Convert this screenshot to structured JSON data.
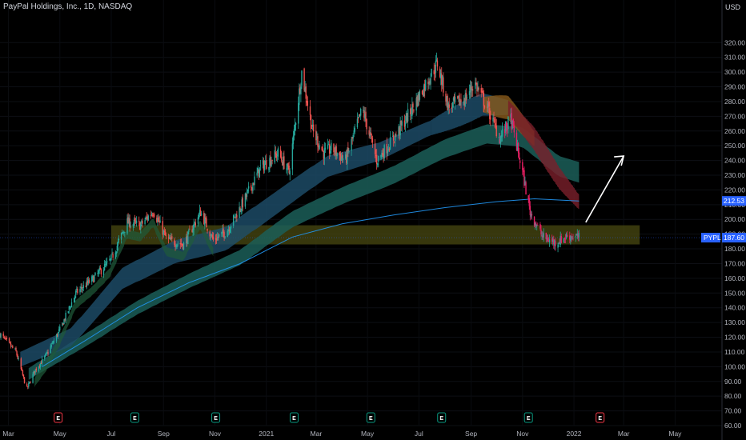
{
  "header": {
    "title": "PayPal Holdings, Inc., 1D, NASDAQ",
    "currency": "USD"
  },
  "price_axis": {
    "min": 60,
    "max": 340,
    "ticks": [
      "320.00",
      "310.00",
      "300.00",
      "290.00",
      "280.00",
      "270.00",
      "260.00",
      "250.00",
      "240.00",
      "230.00",
      "220.00",
      "210.00",
      "200.00",
      "190.00",
      "180.00",
      "170.00",
      "160.00",
      "150.00",
      "140.00",
      "130.00",
      "120.00",
      "110.00",
      "100.00",
      "90.00",
      "80.00",
      "70.00",
      "60.00"
    ]
  },
  "time_axis": {
    "labels": [
      {
        "text": "Mar",
        "date": "2020-03-01"
      },
      {
        "text": "May",
        "date": "2020-05-01"
      },
      {
        "text": "Jul",
        "date": "2020-07-01"
      },
      {
        "text": "Sep",
        "date": "2020-09-01"
      },
      {
        "text": "Nov",
        "date": "2020-11-01"
      },
      {
        "text": "2021",
        "date": "2021-01-01"
      },
      {
        "text": "Mar",
        "date": "2021-03-01"
      },
      {
        "text": "May",
        "date": "2021-05-01"
      },
      {
        "text": "Jul",
        "date": "2021-07-01"
      },
      {
        "text": "Sep",
        "date": "2021-09-01"
      },
      {
        "text": "Nov",
        "date": "2021-11-01"
      },
      {
        "text": "2022",
        "date": "2022-01-01"
      },
      {
        "text": "Mar",
        "date": "2022-03-01"
      },
      {
        "text": "May",
        "date": "2022-05-01"
      }
    ]
  },
  "price_tags": [
    {
      "label": "212.53",
      "value": 212.53,
      "color": "#2962ff"
    },
    {
      "label": "187.60",
      "value": 187.6,
      "color": "#2962ff"
    }
  ],
  "symbol_tag": {
    "label": "PYPL",
    "color": "#2962ff"
  },
  "events": [
    {
      "label": "E",
      "date": "2020-04-29",
      "color": "#f23645"
    },
    {
      "label": "E",
      "date": "2020-07-29",
      "color": "#089981"
    },
    {
      "label": "E",
      "date": "2020-11-02",
      "color": "#089981"
    },
    {
      "label": "E",
      "date": "2021-02-03",
      "color": "#089981"
    },
    {
      "label": "E",
      "date": "2021-05-05",
      "color": "#089981"
    },
    {
      "label": "E",
      "date": "2021-07-28",
      "color": "#089981"
    },
    {
      "label": "E",
      "date": "2021-11-08",
      "color": "#089981"
    },
    {
      "label": "E",
      "date": "2022-02-01",
      "color": "#f23645"
    }
  ],
  "colors": {
    "bull": "#26a69a",
    "bear": "#ef5350",
    "bear_strong": "#e91e63",
    "zone": "#4a4a12",
    "sma_200": "#2196f3",
    "arrow": "#ffffff",
    "grid": "#1e222d"
  },
  "chart_data": {
    "type": "candlestick",
    "symbol": "PYPL",
    "interval": "1D",
    "exchange": "NASDAQ",
    "price_path": [
      {
        "date": "2020-02-20",
        "price": 122
      },
      {
        "date": "2020-03-10",
        "price": 110
      },
      {
        "date": "2020-03-20",
        "price": 90
      },
      {
        "date": "2020-03-23",
        "price": 85
      },
      {
        "date": "2020-04-01",
        "price": 97
      },
      {
        "date": "2020-04-15",
        "price": 108
      },
      {
        "date": "2020-05-01",
        "price": 125
      },
      {
        "date": "2020-05-20",
        "price": 150
      },
      {
        "date": "2020-06-10",
        "price": 160
      },
      {
        "date": "2020-06-30",
        "price": 172
      },
      {
        "date": "2020-07-20",
        "price": 198
      },
      {
        "date": "2020-08-05",
        "price": 196
      },
      {
        "date": "2020-08-20",
        "price": 206
      },
      {
        "date": "2020-09-05",
        "price": 186
      },
      {
        "date": "2020-09-25",
        "price": 183
      },
      {
        "date": "2020-10-15",
        "price": 205
      },
      {
        "date": "2020-10-30",
        "price": 186
      },
      {
        "date": "2020-11-15",
        "price": 192
      },
      {
        "date": "2020-12-05",
        "price": 212
      },
      {
        "date": "2020-12-25",
        "price": 235
      },
      {
        "date": "2021-01-15",
        "price": 245
      },
      {
        "date": "2021-01-28",
        "price": 232
      },
      {
        "date": "2021-02-12",
        "price": 300
      },
      {
        "date": "2021-02-25",
        "price": 260
      },
      {
        "date": "2021-03-10",
        "price": 245
      },
      {
        "date": "2021-03-20",
        "price": 248
      },
      {
        "date": "2021-04-05",
        "price": 240
      },
      {
        "date": "2021-04-25",
        "price": 275
      },
      {
        "date": "2021-05-12",
        "price": 240
      },
      {
        "date": "2021-06-01",
        "price": 255
      },
      {
        "date": "2021-06-20",
        "price": 272
      },
      {
        "date": "2021-07-10",
        "price": 293
      },
      {
        "date": "2021-07-23",
        "price": 306
      },
      {
        "date": "2021-08-05",
        "price": 276
      },
      {
        "date": "2021-08-25",
        "price": 282
      },
      {
        "date": "2021-09-05",
        "price": 293
      },
      {
        "date": "2021-09-20",
        "price": 276
      },
      {
        "date": "2021-10-05",
        "price": 255
      },
      {
        "date": "2021-10-18",
        "price": 268
      },
      {
        "date": "2021-11-01",
        "price": 232
      },
      {
        "date": "2021-11-10",
        "price": 205
      },
      {
        "date": "2021-11-25",
        "price": 188
      },
      {
        "date": "2021-12-10",
        "price": 184
      },
      {
        "date": "2021-12-25",
        "price": 189
      },
      {
        "date": "2022-01-07",
        "price": 187.6
      }
    ],
    "ema_ribbon": [
      {
        "date": "2020-03-15",
        "price": 105
      },
      {
        "date": "2020-05-15",
        "price": 120
      },
      {
        "date": "2020-07-15",
        "price": 160
      },
      {
        "date": "2020-09-15",
        "price": 178
      },
      {
        "date": "2020-11-15",
        "price": 187
      },
      {
        "date": "2021-01-15",
        "price": 212
      },
      {
        "date": "2021-03-15",
        "price": 236
      },
      {
        "date": "2021-05-15",
        "price": 246
      },
      {
        "date": "2021-07-15",
        "price": 262
      },
      {
        "date": "2021-09-15",
        "price": 278
      },
      {
        "date": "2021-10-15",
        "price": 276
      },
      {
        "date": "2021-11-15",
        "price": 255
      },
      {
        "date": "2021-12-15",
        "price": 228
      },
      {
        "date": "2022-01-07",
        "price": 212
      }
    ],
    "ema_mid": [
      {
        "date": "2020-03-25",
        "price": 95
      },
      {
        "date": "2020-06-01",
        "price": 118
      },
      {
        "date": "2020-08-01",
        "price": 140
      },
      {
        "date": "2020-10-01",
        "price": 158
      },
      {
        "date": "2020-12-01",
        "price": 174
      },
      {
        "date": "2021-02-01",
        "price": 200
      },
      {
        "date": "2021-04-01",
        "price": 216
      },
      {
        "date": "2021-06-01",
        "price": 230
      },
      {
        "date": "2021-08-01",
        "price": 248
      },
      {
        "date": "2021-09-20",
        "price": 258
      },
      {
        "date": "2021-11-01",
        "price": 256
      },
      {
        "date": "2021-12-15",
        "price": 236
      },
      {
        "date": "2022-01-07",
        "price": 232
      }
    ],
    "sma_200": [
      {
        "date": "2020-04-10",
        "price": 100
      },
      {
        "date": "2020-06-01",
        "price": 118
      },
      {
        "date": "2020-08-01",
        "price": 140
      },
      {
        "date": "2020-10-01",
        "price": 157
      },
      {
        "date": "2020-12-01",
        "price": 170
      },
      {
        "date": "2021-02-01",
        "price": 188
      },
      {
        "date": "2021-04-01",
        "price": 197
      },
      {
        "date": "2021-06-01",
        "price": 203
      },
      {
        "date": "2021-08-01",
        "price": 208
      },
      {
        "date": "2021-10-01",
        "price": 212
      },
      {
        "date": "2021-11-15",
        "price": 214
      },
      {
        "date": "2022-01-07",
        "price": 212.53
      }
    ],
    "support_zone": {
      "low": 183,
      "high": 196,
      "from": "2020-07-01",
      "to": "2022-03-20"
    },
    "current_price": 187.6,
    "projection_arrow": {
      "from": {
        "date": "2022-01-15",
        "price": 198
      },
      "to": {
        "date": "2022-03-01",
        "price": 243
      }
    }
  }
}
